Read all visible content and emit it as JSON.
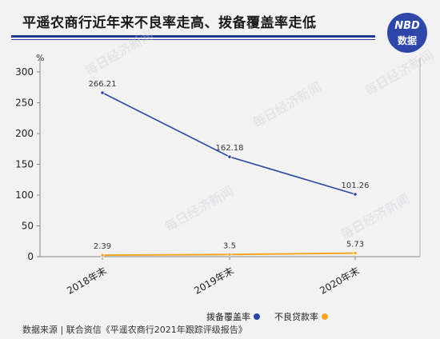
{
  "title": "平遥农商行近年来不良率走高、拨备覆盖率走低",
  "logo": {
    "line1": "NBD",
    "line2": "数据"
  },
  "watermark": "每日经济新闻",
  "source": "数据来源 | 联合资信《平遥农商行2021年跟踪评级报告》",
  "chart_data": {
    "type": "line",
    "categories": [
      "2018年末",
      "2019年末",
      "2020年末"
    ],
    "unit": "%",
    "ylim": [
      0,
      300
    ],
    "yticks": [
      0,
      50,
      100,
      150,
      200,
      250,
      300
    ],
    "series": [
      {
        "name": "拨备覆盖率",
        "values": [
          266.21,
          162.18,
          101.26
        ],
        "labels": [
          "266.21",
          "162.18",
          "101.26"
        ],
        "color": "#2a45a3"
      },
      {
        "name": "不良贷款率",
        "values": [
          2.39,
          3.5,
          5.73
        ],
        "labels": [
          "2.39",
          "3.5",
          "5.73"
        ],
        "color": "#f5a623"
      }
    ]
  }
}
